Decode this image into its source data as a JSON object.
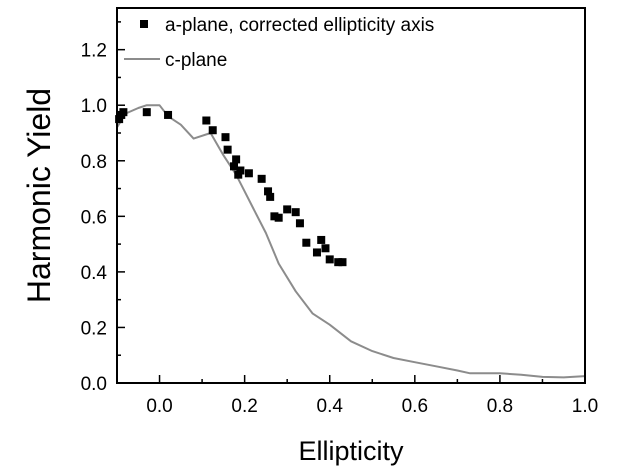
{
  "chart_data": {
    "type": "scatter",
    "title": "",
    "xlabel": "Ellipticity",
    "ylabel": "Harmonic Yield",
    "xlim": [
      -0.1,
      1.0
    ],
    "ylim": [
      0.0,
      1.35
    ],
    "xticks": [
      0.0,
      0.2,
      0.4,
      0.6,
      0.8,
      1.0
    ],
    "xtick_labels": [
      "0.0",
      "0.2",
      "0.4",
      "0.6",
      "0.8",
      "1.0"
    ],
    "yticks": [
      0.0,
      0.2,
      0.4,
      0.6,
      0.8,
      1.0,
      1.2
    ],
    "ytick_labels": [
      "0.0",
      "0.2",
      "0.4",
      "0.6",
      "0.8",
      "1.0",
      "1.2"
    ],
    "grid": false,
    "legend_position": "top-left",
    "series": [
      {
        "name": "a-plane, corrected ellipticity axis",
        "type": "scatter",
        "marker": "square",
        "color": "#000000",
        "x": [
          -0.095,
          -0.09,
          -0.085,
          -0.03,
          0.02,
          0.11,
          0.125,
          0.155,
          0.16,
          0.175,
          0.18,
          0.185,
          0.19,
          0.21,
          0.24,
          0.255,
          0.26,
          0.27,
          0.28,
          0.3,
          0.32,
          0.33,
          0.345,
          0.37,
          0.38,
          0.39,
          0.4,
          0.42,
          0.43
        ],
        "y": [
          0.95,
          0.965,
          0.975,
          0.975,
          0.965,
          0.945,
          0.91,
          0.885,
          0.84,
          0.78,
          0.805,
          0.75,
          0.765,
          0.755,
          0.735,
          0.69,
          0.67,
          0.6,
          0.595,
          0.625,
          0.615,
          0.575,
          0.505,
          0.47,
          0.515,
          0.485,
          0.445,
          0.435,
          0.435
        ]
      },
      {
        "name": "c-plane",
        "type": "line",
        "color": "#8c8c8c",
        "x": [
          -0.1,
          -0.08,
          -0.05,
          -0.03,
          0.0,
          0.02,
          0.05,
          0.08,
          0.12,
          0.15,
          0.18,
          0.2,
          0.22,
          0.25,
          0.28,
          0.32,
          0.36,
          0.4,
          0.45,
          0.5,
          0.55,
          0.6,
          0.65,
          0.7,
          0.73,
          0.8,
          0.85,
          0.9,
          0.95,
          1.0
        ],
        "y": [
          0.92,
          0.97,
          0.99,
          1.0,
          1.0,
          0.96,
          0.93,
          0.88,
          0.9,
          0.82,
          0.75,
          0.69,
          0.63,
          0.54,
          0.43,
          0.33,
          0.25,
          0.21,
          0.15,
          0.115,
          0.09,
          0.075,
          0.06,
          0.045,
          0.035,
          0.035,
          0.03,
          0.022,
          0.02,
          0.025
        ]
      }
    ]
  }
}
